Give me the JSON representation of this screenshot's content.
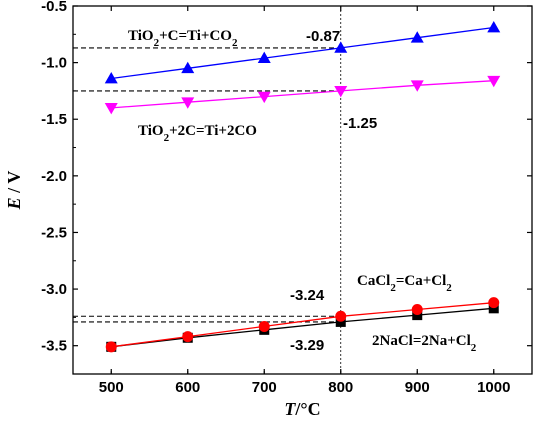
{
  "chart_data": {
    "type": "line",
    "xlabel": {
      "italic": "T",
      "rest": "/°C"
    },
    "ylabel": {
      "italic": "E",
      "rest": " / V"
    },
    "xlim": [
      450,
      1050
    ],
    "ylim": [
      -3.75,
      -0.5
    ],
    "xticks": [
      500,
      600,
      700,
      800,
      900,
      1000
    ],
    "yticks": [
      -0.5,
      -1.0,
      -1.5,
      -2.0,
      -2.5,
      -3.0,
      -3.5
    ],
    "ytick_labels": [
      "-0.5",
      "-1.0",
      "-1.5",
      "-2.0",
      "-2.5",
      "-3.0",
      "-3.5"
    ],
    "x": [
      500,
      600,
      700,
      800,
      900,
      1000
    ],
    "series": [
      {
        "id": "tio2-c",
        "values": [
          -1.14,
          -1.05,
          -0.96,
          -0.87,
          -0.78,
          -0.69
        ],
        "color": "#0000ff",
        "marker": "triangle-up"
      },
      {
        "id": "tio2-2c",
        "values": [
          -1.4,
          -1.35,
          -1.3,
          -1.25,
          -1.2,
          -1.16
        ],
        "color": "#ff00ff",
        "marker": "triangle-down"
      },
      {
        "id": "nacl",
        "values": [
          -3.51,
          -3.43,
          -3.36,
          -3.29,
          -3.23,
          -3.17
        ],
        "color": "#000000",
        "marker": "square"
      },
      {
        "id": "cacl2",
        "values": [
          -3.51,
          -3.42,
          -3.33,
          -3.24,
          -3.18,
          -3.12
        ],
        "color": "#ff0000",
        "marker": "circle"
      }
    ],
    "reactions": [
      {
        "id": "tio2-c",
        "parts": [
          [
            "TiO",
            ""
          ],
          [
            "2",
            "sub"
          ],
          [
            "+C=Ti+CO",
            ""
          ],
          [
            "2",
            "sub"
          ]
        ]
      },
      {
        "id": "tio2-2c",
        "parts": [
          [
            "TiO",
            ""
          ],
          [
            "2",
            "sub"
          ],
          [
            "+2C=Ti+2CO",
            ""
          ]
        ]
      },
      {
        "id": "cacl2",
        "parts": [
          [
            "CaCl",
            ""
          ],
          [
            "2",
            "sub"
          ],
          [
            "=Ca+Cl",
            ""
          ],
          [
            "2",
            "sub"
          ]
        ]
      },
      {
        "id": "nacl",
        "parts": [
          [
            "2NaCl=2Na+Cl",
            ""
          ],
          [
            "2",
            "sub"
          ]
        ]
      }
    ],
    "reference_x": 800,
    "value_labels": [
      {
        "id": "tio2-c",
        "text": "-0.87",
        "y": -0.87
      },
      {
        "id": "tio2-2c",
        "text": "-1.25",
        "y": -1.25
      },
      {
        "id": "cacl2",
        "text": "-3.24",
        "y": -3.24
      },
      {
        "id": "nacl",
        "text": "-3.29",
        "y": -3.29
      }
    ],
    "grid": false,
    "legend": "none"
  }
}
